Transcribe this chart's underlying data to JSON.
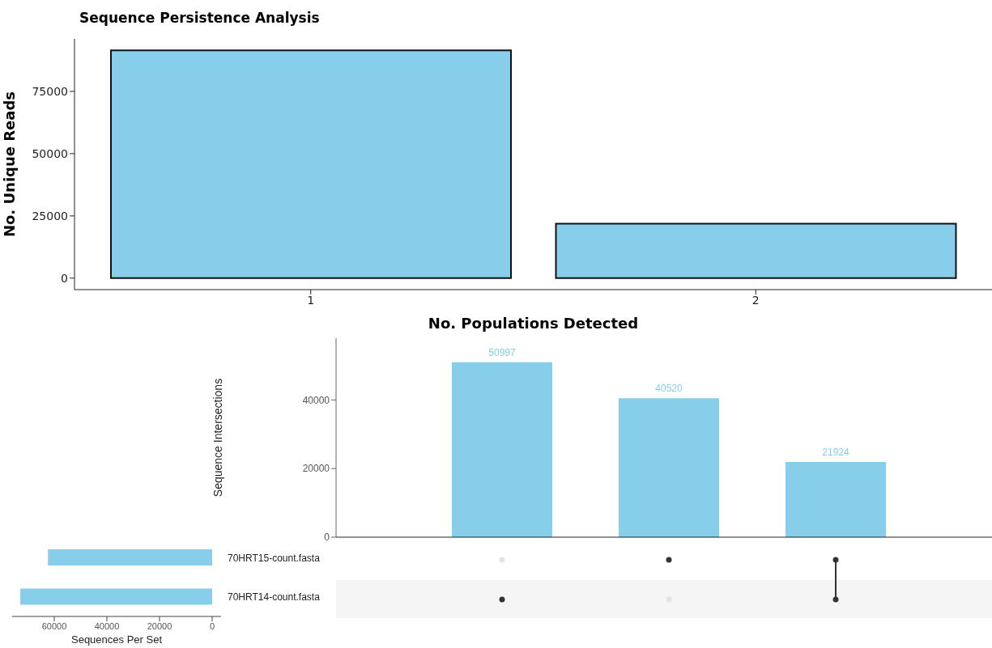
{
  "chart_data": [
    {
      "type": "bar",
      "title": "Sequence Persistence Analysis",
      "xlabel": "No. Populations Detected",
      "ylabel": "No. Unique Reads",
      "categories": [
        "1",
        "2"
      ],
      "values": [
        91500,
        21900
      ],
      "color": "#87ceeb",
      "ylim": [
        -4600,
        96100
      ],
      "yticks": [
        0,
        25000,
        50000,
        75000
      ]
    },
    {
      "type": "bar",
      "ylabel": "Sequence Intersections",
      "categories": [
        null,
        null,
        null
      ],
      "values": [
        50997,
        40520,
        21924
      ],
      "color": "#87ceeb",
      "data_labels": true,
      "ylim": [
        0,
        58000
      ],
      "yticks": [
        0,
        20000,
        40000
      ]
    },
    {
      "type": "bar",
      "orientation": "horizontal",
      "xlabel": "Sequences Per Set",
      "categories": [
        "70HRT15-count.fasta",
        "70HRT14-count.fasta"
      ],
      "values": [
        62400,
        72900
      ],
      "color": "#87ceeb",
      "xlim": [
        76000,
        -3400
      ],
      "xticks": [
        60000,
        40000,
        20000,
        0
      ]
    }
  ]
}
